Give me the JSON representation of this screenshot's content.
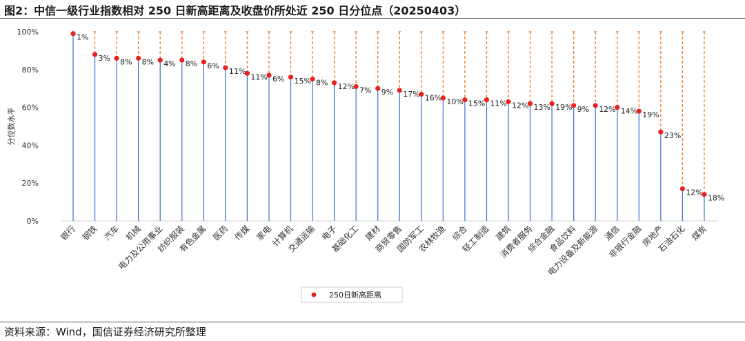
{
  "header": {
    "title": "图2：中信一级行业指数相对 250 日新高距离及收盘价所处近 250 日分位点（20250403）"
  },
  "footer": {
    "source": "资料来源：Wind，国信证券经济研究所整理"
  },
  "colors": {
    "dot": "#e8231e",
    "stem": "#4a78d6",
    "dash": "#f0781e",
    "text": "#333333",
    "axis": "#555555"
  },
  "chart_data": {
    "type": "scatter",
    "ylabel": "分位数水平",
    "ylim": [
      0,
      100
    ],
    "yticks": [
      "0%",
      "20%",
      "40%",
      "60%",
      "80%",
      "100%"
    ],
    "legend": {
      "label": "250日新高距离",
      "placement": "bottom"
    },
    "categories": [
      "银行",
      "钢铁",
      "汽车",
      "机械",
      "电力及公用事业",
      "纺织服装",
      "有色金属",
      "医药",
      "传媒",
      "家电",
      "计算机",
      "交通运输",
      "电子",
      "基础化工",
      "建材",
      "商贸零售",
      "国防军工",
      "农林牧渔",
      "综合",
      "轻工制造",
      "建筑",
      "消费者服务",
      "综合金融",
      "食品饮料",
      "电力设备及新能源",
      "通信",
      "非银行金融",
      "房地产",
      "石油石化",
      "煤炭"
    ],
    "series": [
      {
        "values": [
          99,
          88,
          86,
          86,
          85,
          85,
          84,
          81,
          78,
          77,
          76,
          75,
          73,
          71,
          70,
          69,
          67,
          65,
          64,
          64,
          63,
          62,
          62,
          61,
          61,
          60,
          58,
          47,
          17,
          14
        ],
        "labels": [
          "1%",
          "3%",
          "8%",
          "8%",
          "4%",
          "8%",
          "6%",
          "11%",
          "11%",
          "6%",
          "15%",
          "8%",
          "12%",
          "7%",
          "9%",
          "17%",
          "16%",
          "10%",
          "15%",
          "11%",
          "12%",
          "13%",
          "19%",
          "9%",
          "12%",
          "14%",
          "19%",
          "23%",
          "12%",
          "18%"
        ]
      }
    ]
  }
}
